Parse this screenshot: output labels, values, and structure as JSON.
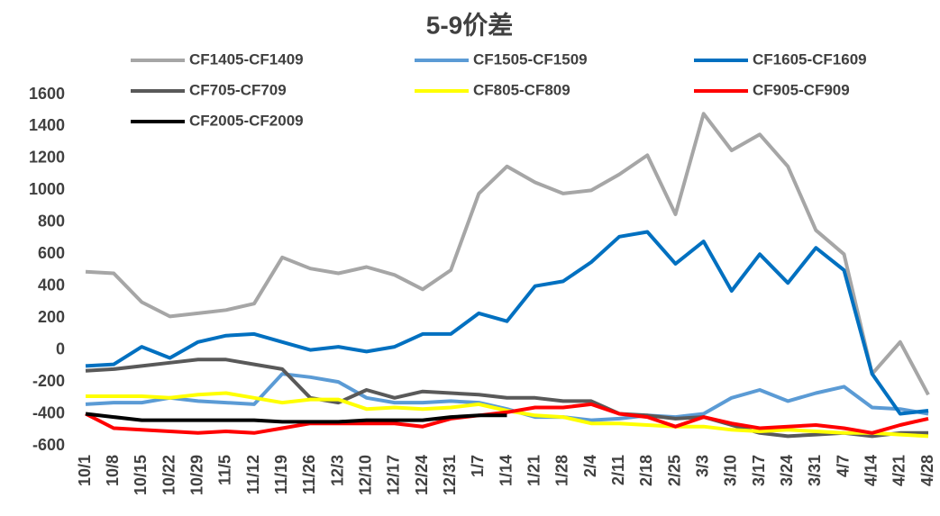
{
  "chart_data": {
    "type": "line",
    "title": "5-9价差",
    "categories": [
      "10/1",
      "10/8",
      "10/15",
      "10/22",
      "10/29",
      "11/5",
      "11/12",
      "11/19",
      "11/26",
      "12/3",
      "12/10",
      "12/17",
      "12/24",
      "12/31",
      "1/7",
      "1/14",
      "1/21",
      "1/28",
      "2/4",
      "2/11",
      "2/18",
      "2/25",
      "3/3",
      "3/10",
      "3/17",
      "3/24",
      "3/31",
      "4/7",
      "4/14",
      "4/21",
      "4/28"
    ],
    "series": [
      {
        "name": "CF1405-CF1409",
        "color": "#a6a6a6",
        "values": [
          490,
          480,
          300,
          210,
          230,
          250,
          290,
          580,
          510,
          480,
          520,
          470,
          380,
          500,
          980,
          1150,
          1050,
          980,
          1000,
          1100,
          1220,
          850,
          1480,
          1250,
          1350,
          1150,
          750,
          600,
          -150,
          50,
          -280
        ]
      },
      {
        "name": "CF1505-CF1509",
        "color": "#5b9bd5",
        "values": [
          -340,
          -330,
          -330,
          -300,
          -320,
          -330,
          -340,
          -150,
          -170,
          -200,
          -300,
          -330,
          -330,
          -320,
          -330,
          -370,
          -420,
          -420,
          -440,
          -430,
          -410,
          -420,
          -400,
          -300,
          -250,
          -320,
          -270,
          -230,
          -360,
          -370,
          -400
        ]
      },
      {
        "name": "CF1605-CF1609",
        "color": "#0070c0",
        "values": [
          -100,
          -90,
          20,
          -50,
          50,
          90,
          100,
          50,
          0,
          20,
          -10,
          20,
          100,
          100,
          230,
          180,
          400,
          430,
          550,
          710,
          740,
          540,
          680,
          370,
          600,
          420,
          640,
          500,
          -150,
          -400,
          -380
        ]
      },
      {
        "name": "CF705-CF709",
        "color": "#595959",
        "values": [
          -130,
          -120,
          -100,
          -80,
          -60,
          -60,
          -90,
          -120,
          -300,
          -330,
          -250,
          -300,
          -260,
          -270,
          -280,
          -300,
          -300,
          -320,
          -320,
          -400,
          -410,
          -430,
          -420,
          -470,
          -520,
          -540,
          -530,
          -520,
          -540,
          -520,
          -520
        ]
      },
      {
        "name": "CF805-CF809",
        "color": "#ffff00",
        "values": [
          -290,
          -290,
          -290,
          -300,
          -280,
          -270,
          -300,
          -330,
          -310,
          -310,
          -370,
          -360,
          -370,
          -360,
          -340,
          -380,
          -410,
          -420,
          -460,
          -460,
          -470,
          -480,
          -480,
          -500,
          -510,
          -500,
          -510,
          -520,
          -520,
          -530,
          -540
        ]
      },
      {
        "name": "CF905-CF909",
        "color": "#ff0000",
        "values": [
          -400,
          -490,
          -500,
          -510,
          -520,
          -510,
          -520,
          -490,
          -460,
          -460,
          -460,
          -460,
          -480,
          -430,
          -410,
          -390,
          -360,
          -360,
          -340,
          -400,
          -420,
          -480,
          -420,
          -460,
          -490,
          -480,
          -470,
          -490,
          -520,
          -470,
          -430
        ]
      },
      {
        "name": "CF2005-CF2009",
        "color": "#000000",
        "values": [
          -400,
          -420,
          -440,
          -440,
          -440,
          -440,
          -440,
          -450,
          -450,
          -450,
          -440,
          -440,
          -440,
          -420,
          -410,
          -410,
          null,
          null,
          null,
          null,
          null,
          null,
          null,
          null,
          null,
          null,
          null,
          null,
          null,
          null,
          null
        ]
      }
    ],
    "ylim": [
      -600,
      1600
    ],
    "yticks": [
      -600,
      -400,
      -200,
      0,
      200,
      400,
      600,
      800,
      1000,
      1200,
      1400,
      1600
    ],
    "grid": false
  }
}
